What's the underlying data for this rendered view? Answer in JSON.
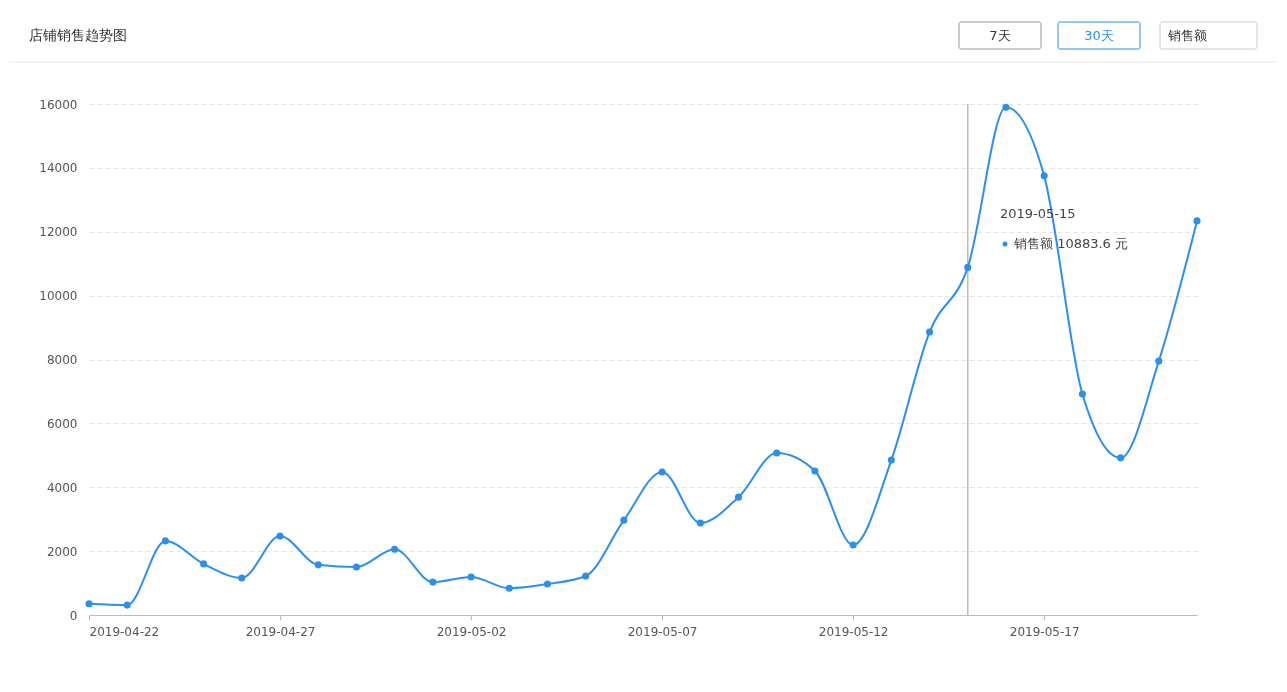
{
  "chart_data": {
    "type": "line",
    "title": "店铺销售趋势图",
    "x": [
      "2019-04-22",
      "2019-04-23",
      "2019-04-24",
      "2019-04-25",
      "2019-04-26",
      "2019-04-27",
      "2019-04-28",
      "2019-04-29",
      "2019-04-30",
      "2019-05-01",
      "2019-05-02",
      "2019-05-03",
      "2019-05-04",
      "2019-05-05",
      "2019-05-06",
      "2019-05-07",
      "2019-05-08",
      "2019-05-09",
      "2019-05-10",
      "2019-05-11",
      "2019-05-12",
      "2019-05-13",
      "2019-05-14",
      "2019-05-15",
      "2019-05-16",
      "2019-05-17",
      "2019-05-18",
      "2019-05-19",
      "2019-05-20",
      "2019-05-21"
    ],
    "series": [
      {
        "color": "#2b8ff0",
        "values": [
          350,
          310,
          2320,
          1600,
          1160,
          2470,
          1570,
          1500,
          2060,
          1030,
          1190,
          840,
          970,
          1220,
          2970,
          4480,
          2880,
          3690,
          5070,
          4510,
          2190,
          4850,
          8860,
          10883.6,
          15900,
          13750,
          6920,
          4920,
          7950,
          12340
        ]
      }
    ],
    "xlim": [
      "2019-04-22",
      "2019-05-21"
    ],
    "xticks": [
      {
        "value": "2019-04-22",
        "label": "2019-04-22"
      },
      {
        "value": "2019-04-27",
        "label": "2019-04-27"
      },
      {
        "value": "2019-05-02",
        "label": "2019-05-02"
      },
      {
        "value": "2019-05-07",
        "label": "2019-05-07"
      },
      {
        "value": "2019-05-12",
        "label": "2019-05-12"
      },
      {
        "value": "2019-05-17",
        "label": "2019-05-17"
      }
    ],
    "ylim": [
      0,
      16000
    ],
    "yticks": [
      0,
      2000,
      4000,
      6000,
      8000,
      10000,
      12000,
      14000,
      16000
    ],
    "grid": "y",
    "marker": "circle",
    "line_style": "solid",
    "ref_lines": [
      {
        "axis": "x",
        "value": "2019-05-15",
        "color": "#bbbbbb"
      }
    ],
    "annotations": [
      "2019-05-15",
      "销售额   10883.6 元",
      "7天",
      "30天",
      "销售额"
    ]
  }
}
